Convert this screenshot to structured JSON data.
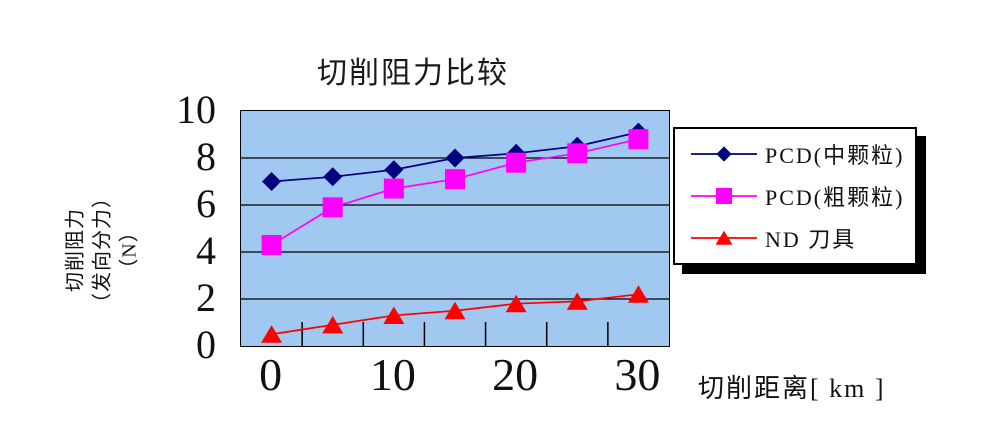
{
  "chart_data": {
    "type": "line",
    "title": "切削阻力比较",
    "x_axis_title": "切削距离[ km ]",
    "y_axis_title_lines": [
      "切削阻力",
      "（发向分力）",
      "（N）"
    ],
    "categories": [
      0,
      5,
      10,
      15,
      20,
      25,
      30
    ],
    "x_tick_labels": [
      "0",
      "10",
      "20",
      "30"
    ],
    "x_tick_category_indices": [
      0,
      2,
      4,
      6
    ],
    "y_ticks": [
      0,
      2,
      4,
      6,
      8,
      10
    ],
    "ylim": [
      0,
      10
    ],
    "grid": "horizontal-only",
    "legend_position": "right",
    "colors": {
      "plot_bg": "#A0C8F0",
      "gridline": "#000000",
      "axis": "#000000",
      "legend_border": "#000000",
      "legend_shadow": "#000000"
    },
    "series": [
      {
        "name": "PCD(中颗粒)",
        "marker": "diamond",
        "color": "#000080",
        "values": [
          7.0,
          7.2,
          7.5,
          8.0,
          8.2,
          8.5,
          9.1
        ]
      },
      {
        "name": "PCD(粗颗粒)",
        "marker": "square",
        "color": "#FF00FF",
        "values": [
          4.3,
          5.9,
          6.7,
          7.1,
          7.8,
          8.2,
          8.8
        ]
      },
      {
        "name": "ND 刀具",
        "marker": "triangle",
        "color": "#FF0000",
        "values": [
          0.5,
          0.9,
          1.3,
          1.5,
          1.8,
          1.9,
          2.2
        ]
      }
    ]
  }
}
